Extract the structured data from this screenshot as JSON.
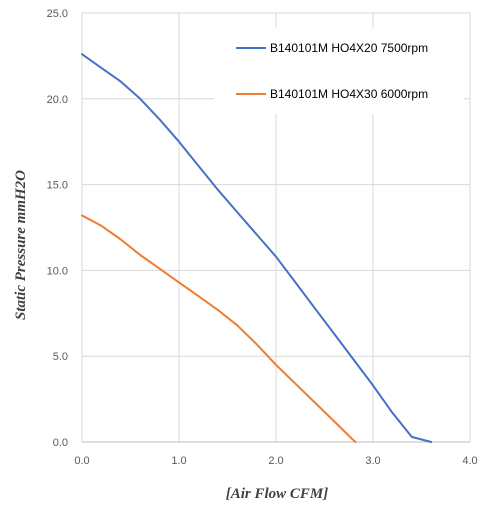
{
  "chart_data": {
    "type": "line",
    "xlabel": "[Air Flow CFM]",
    "ylabel": "Static Pressure mmH2O",
    "xlim": [
      0,
      4
    ],
    "ylim": [
      0,
      25
    ],
    "x_ticks": [
      "0.0",
      "1.0",
      "2.0",
      "3.0",
      "4.0"
    ],
    "y_ticks": [
      "0.0",
      "5.0",
      "10.0",
      "15.0",
      "20.0",
      "25.0"
    ],
    "x_tick_values": [
      0,
      1,
      2,
      3,
      4
    ],
    "y_tick_values": [
      0,
      5,
      10,
      15,
      20,
      25
    ],
    "grid": true,
    "legend_position": "top-right",
    "series": [
      {
        "name": "B140101M HO4X20 7500rpm",
        "color": "#4472C4",
        "points": [
          [
            0,
            22.6
          ],
          [
            0.2,
            21.8
          ],
          [
            0.4,
            21.0
          ],
          [
            0.6,
            20.0
          ],
          [
            0.8,
            18.8
          ],
          [
            1.0,
            17.5
          ],
          [
            1.2,
            16.1
          ],
          [
            1.4,
            14.7
          ],
          [
            1.6,
            13.4
          ],
          [
            1.8,
            12.1
          ],
          [
            2.0,
            10.8
          ],
          [
            2.2,
            9.3
          ],
          [
            2.4,
            7.8
          ],
          [
            2.6,
            6.3
          ],
          [
            2.8,
            4.8
          ],
          [
            3.0,
            3.3
          ],
          [
            3.2,
            1.7
          ],
          [
            3.4,
            0.3
          ],
          [
            3.6,
            0.0
          ]
        ]
      },
      {
        "name": "B140101M HO4X30 6000rpm",
        "color": "#ED7D31",
        "points": [
          [
            0,
            13.2
          ],
          [
            0.2,
            12.6
          ],
          [
            0.4,
            11.8
          ],
          [
            0.6,
            10.9
          ],
          [
            0.8,
            10.1
          ],
          [
            1.0,
            9.3
          ],
          [
            1.2,
            8.5
          ],
          [
            1.4,
            7.7
          ],
          [
            1.6,
            6.8
          ],
          [
            1.8,
            5.7
          ],
          [
            2.0,
            4.5
          ],
          [
            2.2,
            3.4
          ],
          [
            2.4,
            2.3
          ],
          [
            2.6,
            1.2
          ],
          [
            2.8,
            0.1
          ],
          [
            2.82,
            0.0
          ]
        ]
      }
    ]
  }
}
